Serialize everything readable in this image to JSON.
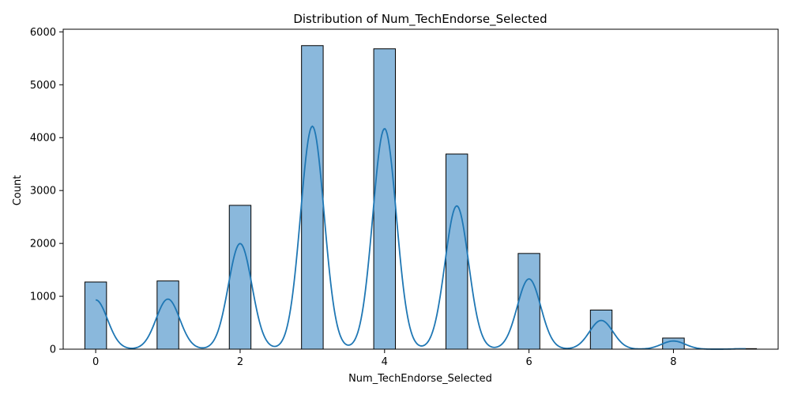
{
  "chart_data": {
    "type": "bar",
    "title": "Distribution of Num_TechEndorse_Selected",
    "xlabel": "Num_TechEndorse_Selected",
    "ylabel": "Count",
    "xlim": [
      -0.45,
      9.45
    ],
    "ylim": [
      0,
      6050
    ],
    "x_ticks": [
      0,
      2,
      4,
      6,
      8
    ],
    "y_ticks": [
      0,
      1000,
      2000,
      3000,
      4000,
      5000,
      6000
    ],
    "bin_width": 0.3,
    "categories": [
      "0",
      "1",
      "2",
      "3",
      "4",
      "5",
      "6",
      "7",
      "8",
      "9"
    ],
    "values": [
      1270,
      1290,
      2720,
      5740,
      5680,
      3690,
      1810,
      740,
      210,
      10
    ],
    "grid": false,
    "legend": "none",
    "colors": {
      "bar_fill": "#8ab8dc",
      "bar_edge": "#000000",
      "kde_line": "#1f77b4"
    },
    "kde": {
      "bandwidth": 0.163,
      "scale": 0.3
    }
  }
}
